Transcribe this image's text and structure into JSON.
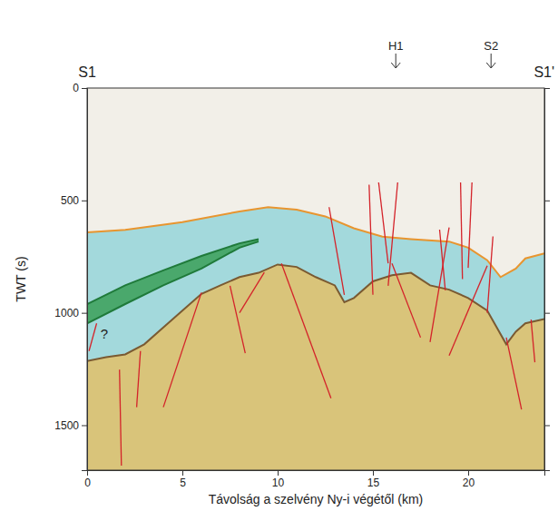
{
  "chart_data": {
    "type": "line",
    "x_label": "Távolság a szelvény Ny-i végétől (km)",
    "y_label": "TWT (s)",
    "xlim": [
      0,
      24
    ],
    "ylim": [
      0,
      1700
    ],
    "xticks": [
      0,
      5,
      10,
      15,
      20
    ],
    "yticks": [
      0,
      500,
      1000,
      1500
    ],
    "section_ends": [
      "S1",
      "S1'"
    ],
    "markers": [
      {
        "label": "H1",
        "x": 16.2
      },
      {
        "label": "S2",
        "x": 21.2
      }
    ],
    "annotations": [
      {
        "text": "?",
        "x": 0.9,
        "y": 1100
      }
    ],
    "series": [
      {
        "color": "#e8952f",
        "line_style": "solid",
        "x": [
          0,
          2,
          5,
          8,
          9.5,
          11,
          12.5,
          14,
          15.5,
          17,
          19,
          20,
          21,
          21.7,
          22.5,
          23,
          24
        ],
        "values": [
          642,
          631,
          597,
          549,
          530,
          541,
          571,
          624,
          661,
          672,
          683,
          710,
          766,
          841,
          803,
          758,
          736
        ]
      },
      {
        "color": "#7a5a32",
        "line_style": "solid",
        "x": [
          0,
          1,
          2,
          3,
          4,
          5,
          6,
          7,
          8,
          9,
          10,
          11,
          12,
          13,
          13.5,
          14,
          15,
          16,
          17,
          18,
          19,
          20,
          21,
          21.5,
          22,
          22.5,
          23,
          24
        ],
        "values": [
          1215,
          1197,
          1185,
          1140,
          1065,
          990,
          916,
          878,
          841,
          822,
          785,
          796,
          841,
          878,
          953,
          934,
          860,
          833,
          822,
          878,
          897,
          934,
          990,
          1065,
          1140,
          1084,
          1047,
          1028
        ]
      },
      {
        "color": "#1f7a3a",
        "line_style": "solid",
        "x": [
          0,
          2,
          4,
          6,
          8,
          9
        ],
        "values": [
          961,
          878,
          811,
          747,
          691,
          672
        ]
      },
      {
        "color": "#1f7a3a",
        "line_style": "solid",
        "x": [
          0,
          2,
          4,
          6,
          8,
          9
        ],
        "values": [
          1047,
          961,
          878,
          803,
          710,
          683
        ]
      },
      {
        "color": "#d4232a",
        "line_style": "solid",
        "x": [
          0.5,
          0.1
        ],
        "values": [
          1047,
          1170
        ]
      },
      {
        "color": "#d4232a",
        "line_style": "solid",
        "x": [
          1.7,
          1.8
        ],
        "values": [
          1253,
          1680
        ]
      },
      {
        "color": "#d4232a",
        "line_style": "solid",
        "x": [
          2.8,
          2.6
        ],
        "values": [
          1170,
          1420
        ]
      },
      {
        "color": "#d4232a",
        "line_style": "solid",
        "x": [
          4.0,
          6.0
        ],
        "values": [
          1420,
          910
        ]
      },
      {
        "color": "#d4232a",
        "line_style": "solid",
        "x": [
          7.5,
          8.3
        ],
        "values": [
          880,
          1180
        ]
      },
      {
        "color": "#d4232a",
        "line_style": "solid",
        "x": [
          8.0,
          9.3
        ],
        "values": [
          1000,
          820
        ]
      },
      {
        "color": "#d4232a",
        "line_style": "solid",
        "x": [
          10.2,
          12.8
        ],
        "values": [
          780,
          1380
        ]
      },
      {
        "color": "#d4232a",
        "line_style": "solid",
        "x": [
          12.7,
          13.5
        ],
        "values": [
          530,
          920
        ]
      },
      {
        "color": "#d4232a",
        "line_style": "solid",
        "x": [
          14.8,
          15.0
        ],
        "values": [
          430,
          920
        ]
      },
      {
        "color": "#d4232a",
        "line_style": "solid",
        "x": [
          15.3,
          15.8
        ],
        "values": [
          420,
          780
        ]
      },
      {
        "color": "#d4232a",
        "line_style": "solid",
        "x": [
          16.3,
          15.8
        ],
        "values": [
          420,
          880
        ]
      },
      {
        "color": "#d4232a",
        "line_style": "solid",
        "x": [
          16.0,
          17.5
        ],
        "values": [
          780,
          1110
        ]
      },
      {
        "color": "#d4232a",
        "line_style": "solid",
        "x": [
          18.5,
          18.8
        ],
        "values": [
          630,
          900
        ]
      },
      {
        "color": "#d4232a",
        "line_style": "solid",
        "x": [
          19.0,
          18.0
        ],
        "values": [
          620,
          1130
        ]
      },
      {
        "color": "#d4232a",
        "line_style": "solid",
        "x": [
          19.6,
          19.7
        ],
        "values": [
          420,
          850
        ]
      },
      {
        "color": "#d4232a",
        "line_style": "solid",
        "x": [
          20.2,
          20.0
        ],
        "values": [
          420,
          800
        ]
      },
      {
        "color": "#d4232a",
        "line_style": "solid",
        "x": [
          21.0,
          19.0
        ],
        "values": [
          790,
          1190
        ]
      },
      {
        "color": "#d4232a",
        "line_style": "solid",
        "x": [
          21.3,
          21.0
        ],
        "values": [
          660,
          1000
        ]
      },
      {
        "color": "#d4232a",
        "line_style": "solid",
        "x": [
          22.0,
          22.8
        ],
        "values": [
          1110,
          1430
        ]
      },
      {
        "color": "#d4232a",
        "line_style": "solid",
        "x": [
          23.3,
          23.5
        ],
        "values": [
          1030,
          1220
        ]
      }
    ]
  }
}
